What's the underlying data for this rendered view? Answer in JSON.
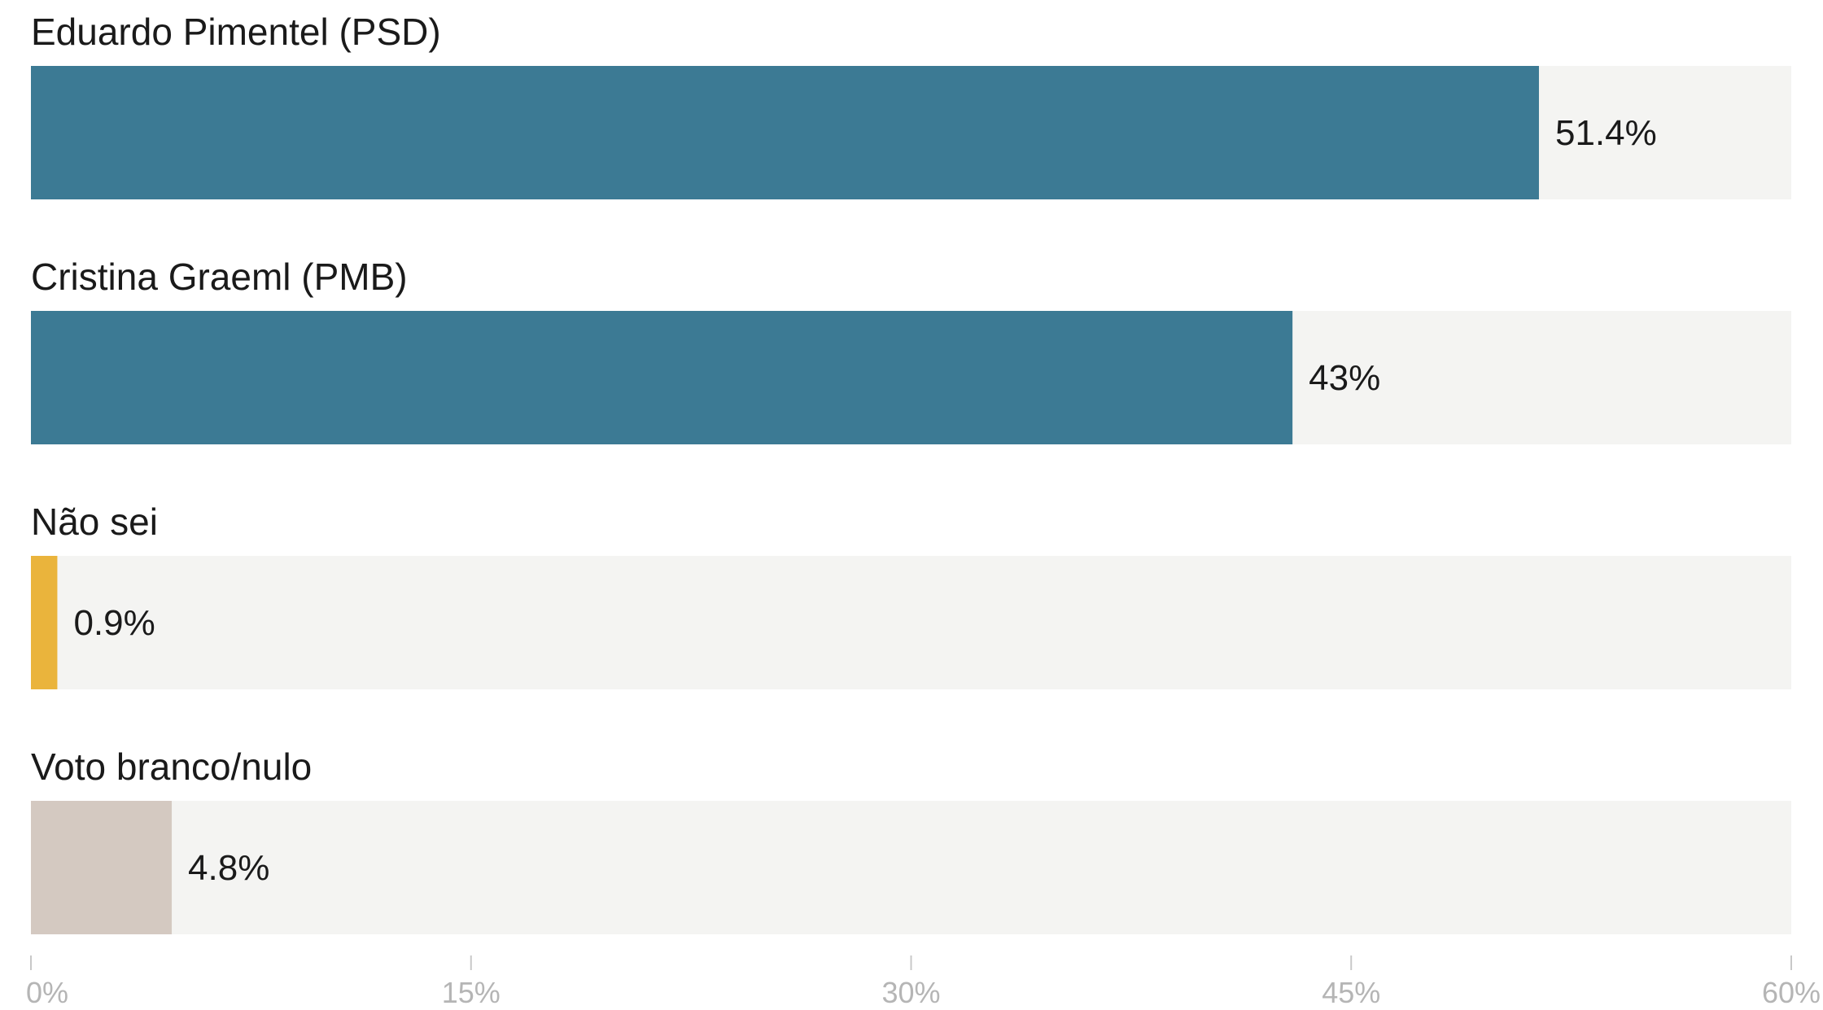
{
  "chart_data": {
    "type": "bar",
    "orientation": "horizontal",
    "categories": [
      "Eduardo Pimentel (PSD)",
      "Cristina Graeml (PMB)",
      "Não sei",
      "Voto branco/nulo"
    ],
    "values": [
      51.4,
      43,
      0.9,
      4.8
    ],
    "value_labels": [
      "51.4%",
      "43%",
      "0.9%",
      "4.8%"
    ],
    "bar_colors": [
      "#3c7a94",
      "#3c7a94",
      "#eab43c",
      "#d4c9c1"
    ],
    "track_color": "#f4f4f2",
    "title": "",
    "xlabel": "",
    "ylabel": "",
    "xlim": [
      0,
      60
    ],
    "x_ticks": [
      0,
      15,
      30,
      45,
      60
    ],
    "x_tick_labels": [
      "0%",
      "15%",
      "30%",
      "45%",
      "60%"
    ],
    "grid": false,
    "legend": "none"
  }
}
